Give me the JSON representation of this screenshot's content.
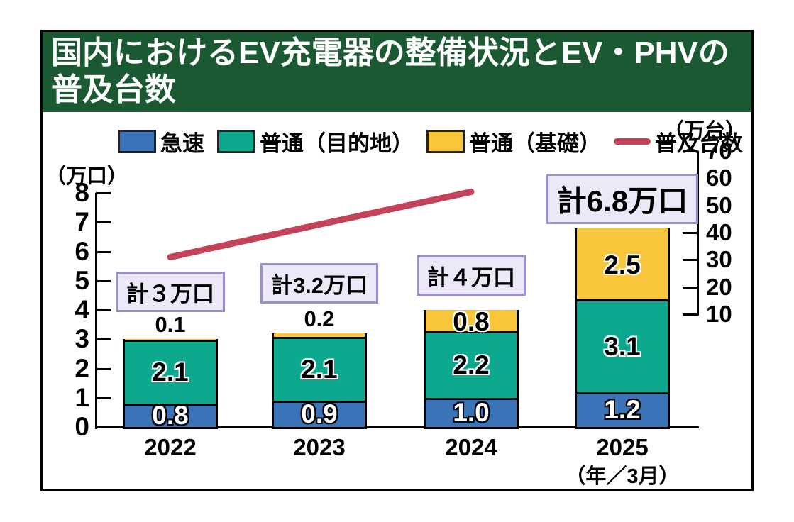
{
  "title": {
    "line1": "国内におけるEV充電器の整備状況とEV・PHVの",
    "line2": "普及台数"
  },
  "colors": {
    "header_bg": "#1b5933",
    "frame_border": "#000000",
    "total_box_bg": "#ece8f8",
    "total_box_border": "#9c8ed0",
    "axis": "#000000"
  },
  "legend": {
    "items": [
      {
        "label": "急速",
        "color": "#3b73b9",
        "swatch": "box"
      },
      {
        "label": "普通（目的地）",
        "color": "#0ca98e",
        "swatch": "box"
      },
      {
        "label": "普通（基礎）",
        "color": "#f9c53a",
        "swatch": "box"
      },
      {
        "label": "普及台数",
        "color": "#c4425a",
        "swatch": "line"
      }
    ]
  },
  "axes": {
    "left_unit": "（万口）",
    "right_unit": "（万台）",
    "x_note": "（年／3月）"
  },
  "chart_data": {
    "type": "bar",
    "title": "国内におけるEV充電器の整備状況とEV・PHVの普及台数",
    "categories": [
      "2022",
      "2023",
      "2024",
      "2025"
    ],
    "series": [
      {
        "name": "急速",
        "color": "#3b73b9",
        "values": [
          0.8,
          0.9,
          1.0,
          1.2
        ]
      },
      {
        "name": "普通（目的地）",
        "color": "#0ca98e",
        "values": [
          2.1,
          2.1,
          2.2,
          3.1
        ]
      },
      {
        "name": "普通（基礎）",
        "color": "#f9c53a",
        "values": [
          0.1,
          0.2,
          0.8,
          2.5
        ]
      }
    ],
    "totals": [
      "計３万口",
      "計3.2万口",
      "計４万口",
      "計6.8万口"
    ],
    "line": {
      "name": "普及台数",
      "type": "line",
      "color": "#c4425a",
      "x": [
        "2022",
        "2023",
        "2024"
      ],
      "values": [
        31,
        43,
        55
      ]
    },
    "left_axis": {
      "unit": "（万口）",
      "min": 0,
      "max": 8,
      "step": 1,
      "ticks": [
        0,
        1,
        2,
        3,
        4,
        5,
        6,
        7,
        8
      ]
    },
    "right_axis": {
      "unit": "（万台）",
      "min": 10,
      "max": 70,
      "step": 10,
      "ticks": [
        10,
        20,
        30,
        40,
        50,
        60,
        70
      ]
    },
    "legend_position": "top",
    "grid": false
  }
}
